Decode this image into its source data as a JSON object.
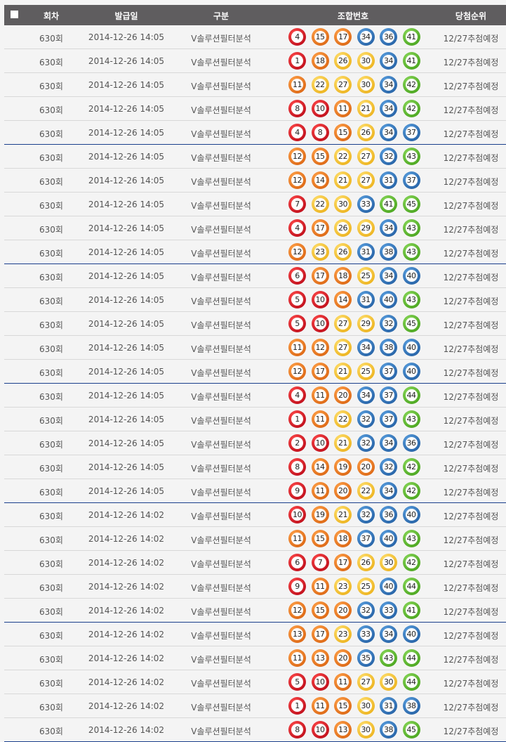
{
  "header": {
    "round": "회차",
    "date": "발급일",
    "type": "구분",
    "numbers": "조합번호",
    "rank": "당첨순위"
  },
  "ball_colors": {
    "1-10": "#d6141c",
    "11-20": "#f07a1a",
    "21-30": "#f7c52a",
    "31-40": "#2a6fb8",
    "41-45": "#5ab22a"
  },
  "rows": [
    {
      "round": "630회",
      "date": "2014-12-26 14:05",
      "type": "V솔루션필터분석",
      "numbers": [
        4,
        15,
        17,
        34,
        36,
        41
      ],
      "rank": "12/27추첨예정"
    },
    {
      "round": "630회",
      "date": "2014-12-26 14:05",
      "type": "V솔루션필터분석",
      "numbers": [
        1,
        18,
        26,
        30,
        34,
        41
      ],
      "rank": "12/27추첨예정"
    },
    {
      "round": "630회",
      "date": "2014-12-26 14:05",
      "type": "V솔루션필터분석",
      "numbers": [
        11,
        22,
        27,
        30,
        34,
        42
      ],
      "rank": "12/27추첨예정"
    },
    {
      "round": "630회",
      "date": "2014-12-26 14:05",
      "type": "V솔루션필터분석",
      "numbers": [
        8,
        10,
        11,
        21,
        34,
        42
      ],
      "rank": "12/27추첨예정"
    },
    {
      "round": "630회",
      "date": "2014-12-26 14:05",
      "type": "V솔루션필터분석",
      "numbers": [
        4,
        8,
        15,
        26,
        34,
        37
      ],
      "rank": "12/27추첨예정"
    },
    {
      "round": "630회",
      "date": "2014-12-26 14:05",
      "type": "V솔루션필터분석",
      "numbers": [
        12,
        15,
        22,
        27,
        32,
        43
      ],
      "rank": "12/27추첨예정"
    },
    {
      "round": "630회",
      "date": "2014-12-26 14:05",
      "type": "V솔루션필터분석",
      "numbers": [
        12,
        14,
        21,
        27,
        31,
        37
      ],
      "rank": "12/27추첨예정"
    },
    {
      "round": "630회",
      "date": "2014-12-26 14:05",
      "type": "V솔루션필터분석",
      "numbers": [
        7,
        22,
        30,
        33,
        41,
        45
      ],
      "rank": "12/27추첨예정"
    },
    {
      "round": "630회",
      "date": "2014-12-26 14:05",
      "type": "V솔루션필터분석",
      "numbers": [
        4,
        17,
        26,
        29,
        34,
        43
      ],
      "rank": "12/27추첨예정"
    },
    {
      "round": "630회",
      "date": "2014-12-26 14:05",
      "type": "V솔루션필터분석",
      "numbers": [
        12,
        23,
        26,
        31,
        38,
        43
      ],
      "rank": "12/27추첨예정"
    },
    {
      "round": "630회",
      "date": "2014-12-26 14:05",
      "type": "V솔루션필터분석",
      "numbers": [
        6,
        17,
        18,
        25,
        34,
        40
      ],
      "rank": "12/27추첨예정"
    },
    {
      "round": "630회",
      "date": "2014-12-26 14:05",
      "type": "V솔루션필터분석",
      "numbers": [
        5,
        10,
        14,
        31,
        40,
        43
      ],
      "rank": "12/27추첨예정"
    },
    {
      "round": "630회",
      "date": "2014-12-26 14:05",
      "type": "V솔루션필터분석",
      "numbers": [
        5,
        10,
        27,
        29,
        32,
        45
      ],
      "rank": "12/27추첨예정"
    },
    {
      "round": "630회",
      "date": "2014-12-26 14:05",
      "type": "V솔루션필터분석",
      "numbers": [
        11,
        12,
        27,
        34,
        38,
        40
      ],
      "rank": "12/27추첨예정"
    },
    {
      "round": "630회",
      "date": "2014-12-26 14:05",
      "type": "V솔루션필터분석",
      "numbers": [
        12,
        17,
        21,
        25,
        37,
        40
      ],
      "rank": "12/27추첨예정"
    },
    {
      "round": "630회",
      "date": "2014-12-26 14:05",
      "type": "V솔루션필터분석",
      "numbers": [
        4,
        11,
        20,
        34,
        37,
        44
      ],
      "rank": "12/27추첨예정"
    },
    {
      "round": "630회",
      "date": "2014-12-26 14:05",
      "type": "V솔루션필터분석",
      "numbers": [
        1,
        11,
        22,
        32,
        37,
        43
      ],
      "rank": "12/27추첨예정"
    },
    {
      "round": "630회",
      "date": "2014-12-26 14:05",
      "type": "V솔루션필터분석",
      "numbers": [
        2,
        10,
        21,
        32,
        34,
        36
      ],
      "rank": "12/27추첨예정"
    },
    {
      "round": "630회",
      "date": "2014-12-26 14:05",
      "type": "V솔루션필터분석",
      "numbers": [
        8,
        14,
        19,
        20,
        32,
        42
      ],
      "rank": "12/27추첨예정"
    },
    {
      "round": "630회",
      "date": "2014-12-26 14:05",
      "type": "V솔루션필터분석",
      "numbers": [
        9,
        11,
        20,
        22,
        34,
        42
      ],
      "rank": "12/27추첨예정"
    },
    {
      "round": "630회",
      "date": "2014-12-26 14:02",
      "type": "V솔루션필터분석",
      "numbers": [
        10,
        19,
        21,
        32,
        36,
        40
      ],
      "rank": "12/27추첨예정"
    },
    {
      "round": "630회",
      "date": "2014-12-26 14:02",
      "type": "V솔루션필터분석",
      "numbers": [
        11,
        15,
        18,
        37,
        40,
        43
      ],
      "rank": "12/27추첨예정"
    },
    {
      "round": "630회",
      "date": "2014-12-26 14:02",
      "type": "V솔루션필터분석",
      "numbers": [
        6,
        7,
        17,
        26,
        30,
        42
      ],
      "rank": "12/27추첨예정"
    },
    {
      "round": "630회",
      "date": "2014-12-26 14:02",
      "type": "V솔루션필터분석",
      "numbers": [
        9,
        11,
        23,
        25,
        40,
        44
      ],
      "rank": "12/27추첨예정"
    },
    {
      "round": "630회",
      "date": "2014-12-26 14:02",
      "type": "V솔루션필터분석",
      "numbers": [
        12,
        15,
        20,
        32,
        33,
        41
      ],
      "rank": "12/27추첨예정"
    },
    {
      "round": "630회",
      "date": "2014-12-26 14:02",
      "type": "V솔루션필터분석",
      "numbers": [
        13,
        17,
        23,
        33,
        34,
        40
      ],
      "rank": "12/27추첨예정"
    },
    {
      "round": "630회",
      "date": "2014-12-26 14:02",
      "type": "V솔루션필터분석",
      "numbers": [
        11,
        13,
        20,
        35,
        43,
        44
      ],
      "rank": "12/27추첨예정"
    },
    {
      "round": "630회",
      "date": "2014-12-26 14:02",
      "type": "V솔루션필터분석",
      "numbers": [
        5,
        10,
        11,
        27,
        30,
        44
      ],
      "rank": "12/27추첨예정"
    },
    {
      "round": "630회",
      "date": "2014-12-26 14:02",
      "type": "V솔루션필터분석",
      "numbers": [
        1,
        11,
        15,
        30,
        31,
        38
      ],
      "rank": "12/27추첨예정"
    },
    {
      "round": "630회",
      "date": "2014-12-26 14:02",
      "type": "V솔루션필터분석",
      "numbers": [
        8,
        10,
        13,
        30,
        38,
        45
      ],
      "rank": "12/27추첨예정"
    }
  ]
}
